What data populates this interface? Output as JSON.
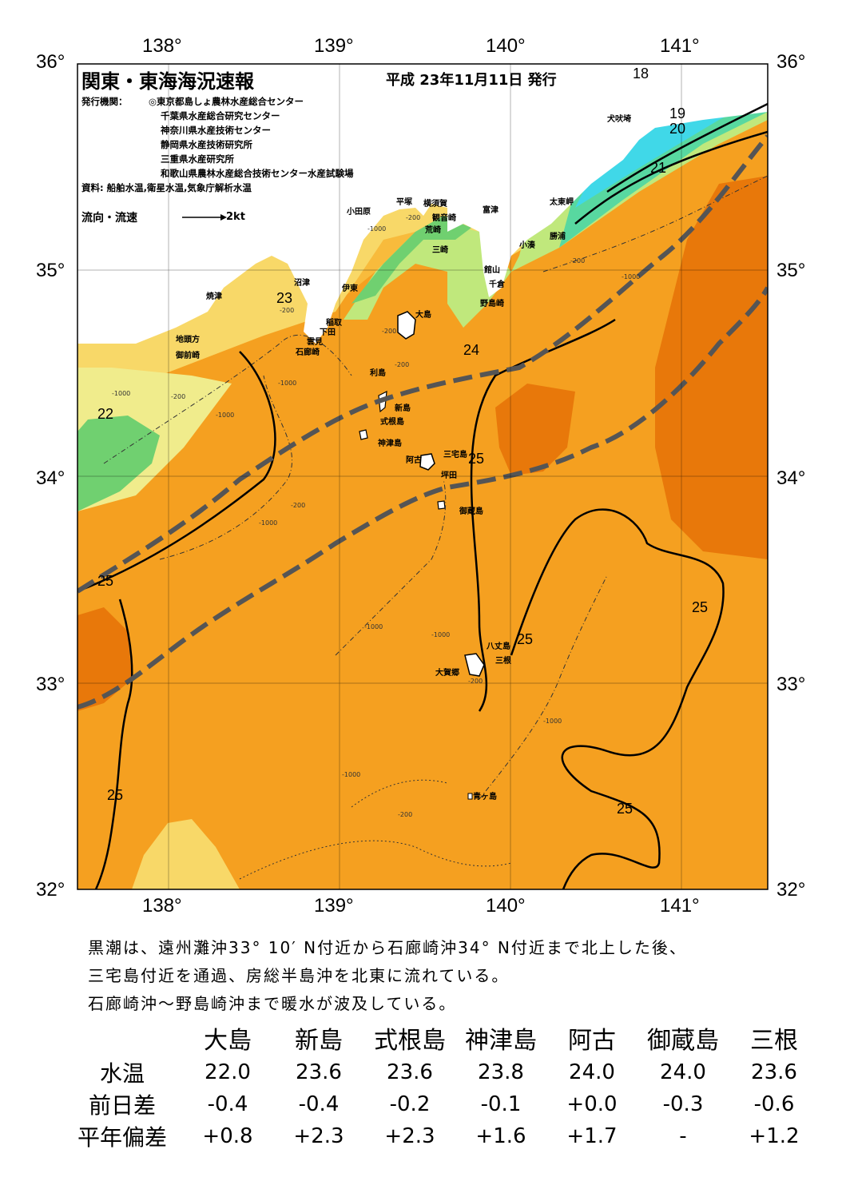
{
  "map": {
    "title": "関東・東海海況速報",
    "issue_date": "平成 23年11月11日 発行",
    "publisher_label": "発行機関：",
    "publishers": [
      "◎東京都島しょ農林水産総合センター",
      "千葉県水産総合研究センター",
      "神奈川県水産技術センター",
      "静岡県水産技術研究所",
      "三重県水産研究所",
      "和歌山県農林水産総合技術センター水産試験場"
    ],
    "source": "資料: 船舶水温,衛星水温,気象庁解析水温",
    "legend_label": "流向・流速",
    "legend_speed": "2kt",
    "lon_labels": [
      "138°",
      "139°",
      "140°",
      "141°"
    ],
    "lat_labels": [
      "36°",
      "35°",
      "34°",
      "33°",
      "32°"
    ],
    "places": [
      {
        "name": "犬吠埼"
      },
      {
        "name": "太東岬"
      },
      {
        "name": "勝浦"
      },
      {
        "name": "小湊"
      },
      {
        "name": "富津"
      },
      {
        "name": "館山"
      },
      {
        "name": "千倉"
      },
      {
        "name": "野島崎"
      },
      {
        "name": "横須賀"
      },
      {
        "name": "観音崎"
      },
      {
        "name": "荒崎"
      },
      {
        "name": "三崎"
      },
      {
        "name": "平塚"
      },
      {
        "name": "小田原"
      },
      {
        "name": "沼津"
      },
      {
        "name": "伊東"
      },
      {
        "name": "焼津"
      },
      {
        "name": "稲取"
      },
      {
        "name": "下田"
      },
      {
        "name": "雲見"
      },
      {
        "name": "石廊崎"
      },
      {
        "name": "地頭方"
      },
      {
        "name": "御前崎"
      },
      {
        "name": "大島"
      },
      {
        "name": "利島"
      },
      {
        "name": "新島"
      },
      {
        "name": "式根島"
      },
      {
        "name": "神津島"
      },
      {
        "name": "三宅島"
      },
      {
        "name": "阿古"
      },
      {
        "name": "坪田"
      },
      {
        "name": "御蔵島"
      },
      {
        "name": "八丈島"
      },
      {
        "name": "三根"
      },
      {
        "name": "大賀郷"
      },
      {
        "name": "青ヶ島"
      }
    ],
    "isotherm_labels": [
      "18",
      "19",
      "20",
      "21",
      "23",
      "24",
      "22",
      "25",
      "25",
      "25",
      "25",
      "25",
      "25",
      "25"
    ],
    "depth_labels": [
      "-200",
      "-1000",
      "-200",
      "-1000",
      "-200",
      "-200",
      "-1000",
      "-200",
      "-1000",
      "-200",
      "-1000",
      "-1000",
      "-1000",
      "-1000",
      "-200",
      "-1000",
      "-1000",
      "-200",
      "-200"
    ],
    "colors": {
      "deep_orange": "#e8780a",
      "orange": "#f5a020",
      "light_orange": "#f8bb3c",
      "yellow": "#f8d868",
      "pale_yellow": "#f0ec8c",
      "light_green": "#c0e87c",
      "green": "#70d070",
      "teal": "#58d8a0",
      "cyan": "#40d8e8",
      "blue": "#40a0e8",
      "kuroshio_axis": "#555555"
    }
  },
  "note": {
    "line1": "黒潮は、遠州灘沖33° 10′ N付近から石廊崎沖34° N付近まで北上した後、",
    "line2": "三宅島付近を通過、房総半島沖を北東に流れている。",
    "line3": "石廊崎沖～野島崎沖まで暖水が波及している。"
  },
  "observations": {
    "stations": [
      "大島",
      "新島",
      "式根島",
      "神津島",
      "阿古",
      "御蔵島",
      "三根"
    ],
    "rows": [
      {
        "label": "水温",
        "values": [
          "22.0",
          "23.6",
          "23.6",
          "23.8",
          "24.0",
          "24.0",
          "23.6"
        ]
      },
      {
        "label": "前日差",
        "values": [
          "-0.4",
          "-0.4",
          "-0.2",
          "-0.1",
          "+0.0",
          "-0.3",
          "-0.6"
        ]
      },
      {
        "label": "平年偏差",
        "values": [
          "+0.8",
          "+2.3",
          "+2.3",
          "+1.6",
          "+1.7",
          "-",
          "+1.2"
        ]
      }
    ]
  }
}
